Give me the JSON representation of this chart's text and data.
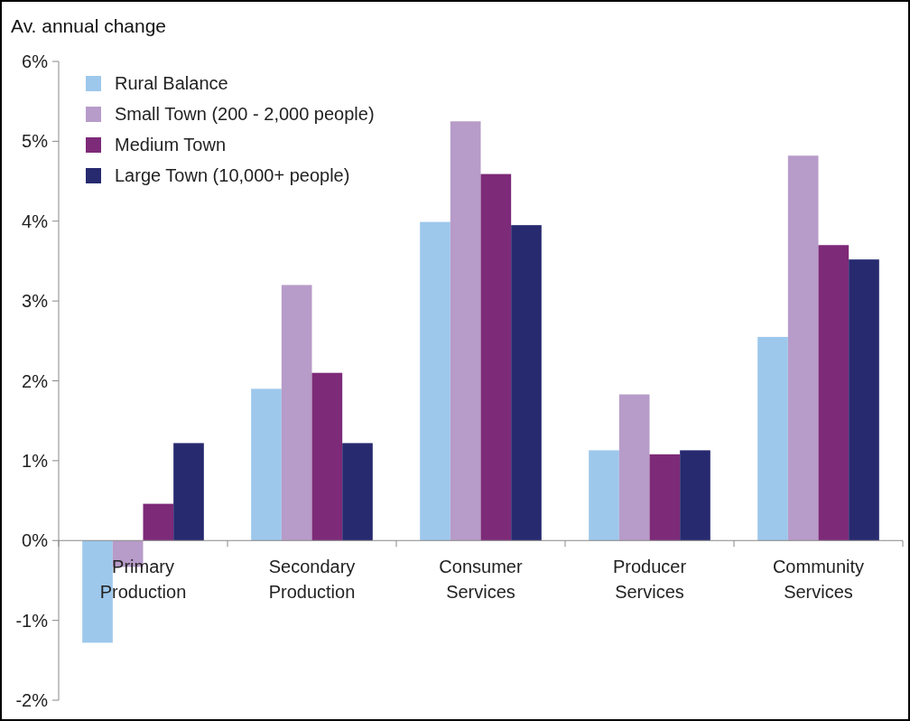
{
  "chart_data": {
    "type": "bar",
    "ylabel": "Av. annual change",
    "categories": [
      "Primary Production",
      "Secondary Production",
      "Consumer Services",
      "Producer Services",
      "Community Services"
    ],
    "series": [
      {
        "name": "Rural Balance",
        "color": "#9dc8ec",
        "values": [
          -1.28,
          1.9,
          3.99,
          1.13,
          2.55
        ]
      },
      {
        "name": "Small Town (200 - 2,000 people)",
        "color": "#b79bc9",
        "values": [
          -0.33,
          3.2,
          5.25,
          1.83,
          4.82
        ]
      },
      {
        "name": "Medium Town",
        "color": "#7d2a78",
        "values": [
          0.46,
          2.1,
          4.59,
          1.08,
          3.7
        ]
      },
      {
        "name": "Large Town (10,000+ people)",
        "color": "#272a6f",
        "values": [
          1.22,
          1.22,
          3.95,
          1.13,
          3.52
        ]
      }
    ],
    "ylim": [
      -2,
      6
    ],
    "yticks": [
      {
        "value": -2,
        "label": "-2%"
      },
      {
        "value": -1,
        "label": "-1%"
      },
      {
        "value": 0,
        "label": "0%"
      },
      {
        "value": 1,
        "label": "1%"
      },
      {
        "value": 2,
        "label": "2%"
      },
      {
        "value": 3,
        "label": "3%"
      },
      {
        "value": 4,
        "label": "4%"
      },
      {
        "value": 5,
        "label": "5%"
      },
      {
        "value": 6,
        "label": "6%"
      }
    ],
    "legend": "top left"
  }
}
